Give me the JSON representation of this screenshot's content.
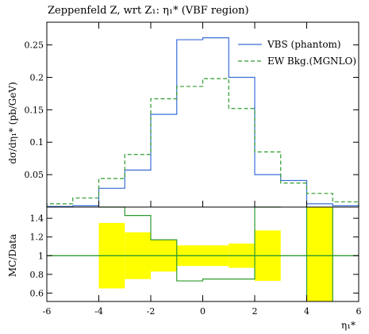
{
  "chart_data": [
    {
      "type": "line",
      "title": "Zeppenfeld Z, wrt Z₁: η₁* (VBF region)",
      "ylabel": "dσ/dη₁* (pb/GeV)",
      "xlabel": "",
      "xlim": [
        -6,
        6
      ],
      "ylim": [
        0,
        0.285
      ],
      "grid": false,
      "legend_position": "top-right",
      "bin_edges": [
        -6,
        -5,
        -4,
        -3,
        -2,
        -1,
        0,
        1,
        2,
        3,
        4,
        5,
        6
      ],
      "series": [
        {
          "name": "VBS (phantom)",
          "color": "#3a6fd8",
          "dash": "solid",
          "values": [
            0.001,
            0.002,
            0.029,
            0.057,
            0.143,
            0.258,
            0.261,
            0.2,
            0.05,
            0.041,
            0.005,
            0.002
          ]
        },
        {
          "name": "EW Bkg.(MGNLO)",
          "color": "#2e9a2e",
          "dash": "dashed",
          "values": [
            0.005,
            0.014,
            0.044,
            0.081,
            0.167,
            0.186,
            0.198,
            0.152,
            0.085,
            0.037,
            0.021,
            0.008
          ]
        }
      ],
      "yticks": [
        {
          "v": 0.05,
          "label": "0.05"
        },
        {
          "v": 0.1,
          "label": "0.1"
        },
        {
          "v": 0.15,
          "label": "0.15"
        },
        {
          "v": 0.2,
          "label": "0.2"
        },
        {
          "v": 0.25,
          "label": "0.25"
        }
      ]
    },
    {
      "type": "bar",
      "title": "",
      "ylabel": "MC/Data",
      "xlabel": "η₁*",
      "xlim": [
        -6,
        6
      ],
      "ylim": [
        0.51,
        1.52
      ],
      "grid": false,
      "reference_line": 1.0,
      "band_color": "#ffff00",
      "ratio_color": "#2e9a2e",
      "bands": [
        {
          "x0": -4,
          "x1": -3,
          "lo": 0.65,
          "hi": 1.35
        },
        {
          "x0": -3,
          "x1": -2,
          "lo": 0.75,
          "hi": 1.25
        },
        {
          "x0": -2,
          "x1": -1,
          "lo": 0.83,
          "hi": 1.17
        },
        {
          "x0": -1,
          "x1": 0,
          "lo": 0.89,
          "hi": 1.11
        },
        {
          "x0": 0,
          "x1": 1,
          "lo": 0.89,
          "hi": 1.11
        },
        {
          "x0": 1,
          "x1": 2,
          "lo": 0.87,
          "hi": 1.13
        },
        {
          "x0": 2,
          "x1": 3,
          "lo": 0.73,
          "hi": 1.27
        },
        {
          "x0": 4,
          "x1": 5,
          "lo": 0.51,
          "hi": 1.52
        }
      ],
      "ratio_edges": [
        -4,
        -3,
        -2,
        -1,
        0,
        1,
        2,
        3
      ],
      "ratio_values": [
        1.52,
        1.43,
        1.17,
        0.73,
        0.75,
        0.75,
        1.52
      ],
      "ratio_outside": [
        {
          "x0": 4,
          "x1": 5
        }
      ],
      "yticks": [
        {
          "v": 0.6,
          "label": "0.6"
        },
        {
          "v": 0.8,
          "label": "0.8"
        },
        {
          "v": 1.0,
          "label": "1"
        },
        {
          "v": 1.2,
          "label": "1.2"
        },
        {
          "v": 1.4,
          "label": "1.4"
        }
      ],
      "xticks": [
        {
          "v": -6,
          "label": "-6"
        },
        {
          "v": -4,
          "label": "-4"
        },
        {
          "v": -2,
          "label": "-2"
        },
        {
          "v": 0,
          "label": "0"
        },
        {
          "v": 2,
          "label": "2"
        },
        {
          "v": 4,
          "label": "4"
        },
        {
          "v": 6,
          "label": "6"
        }
      ]
    }
  ]
}
